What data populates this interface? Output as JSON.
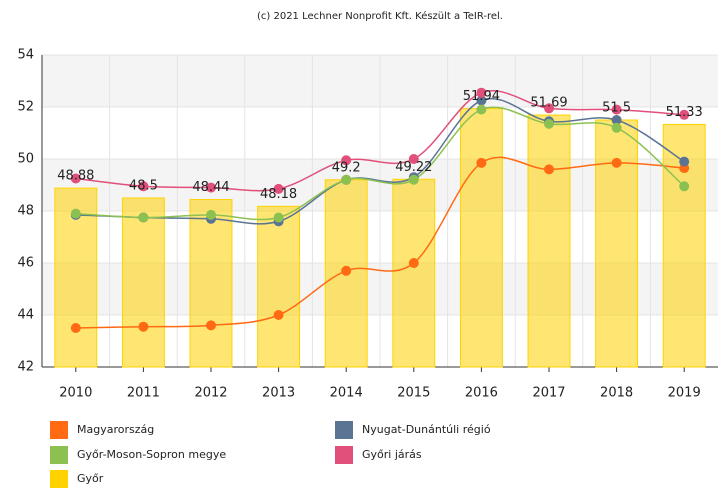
{
  "chart_data": {
    "type": "line",
    "subtitle": "(c) 2021 Lechner Nonprofit Kft. Készült a TeIR-rel.",
    "categories": [
      "2010",
      "2011",
      "2012",
      "2013",
      "2014",
      "2015",
      "2016",
      "2017",
      "2018",
      "2019"
    ],
    "ylim": [
      42,
      54
    ],
    "yticks": [
      42,
      44,
      46,
      48,
      50,
      52,
      54
    ],
    "grid": true,
    "series": [
      {
        "name": "Magyarország",
        "type": "line",
        "color": "#ff6a13",
        "values": [
          43.5,
          43.55,
          43.6,
          44.0,
          45.7,
          46.0,
          49.85,
          49.6,
          49.85,
          49.65
        ]
      },
      {
        "name": "Nyugat-Dunántúli régió",
        "type": "line",
        "color": "#5b7494",
        "values": [
          47.85,
          47.75,
          47.7,
          47.6,
          49.2,
          49.3,
          52.25,
          51.45,
          51.5,
          49.9
        ]
      },
      {
        "name": "Győr-Moson-Sopron megye",
        "type": "line",
        "color": "#8cc152",
        "values": [
          47.9,
          47.75,
          47.85,
          47.75,
          49.2,
          49.2,
          51.9,
          51.35,
          51.2,
          48.95
        ]
      },
      {
        "name": "Győri járás",
        "type": "line",
        "color": "#e0507a",
        "values": [
          49.25,
          48.95,
          48.9,
          48.85,
          49.95,
          50.0,
          52.55,
          51.95,
          51.9,
          51.7
        ]
      },
      {
        "name": "Győr",
        "type": "bar",
        "color": "#ffd200",
        "values": [
          48.88,
          48.5,
          48.44,
          48.18,
          49.2,
          49.22,
          51.94,
          51.69,
          51.5,
          51.33
        ]
      }
    ]
  }
}
